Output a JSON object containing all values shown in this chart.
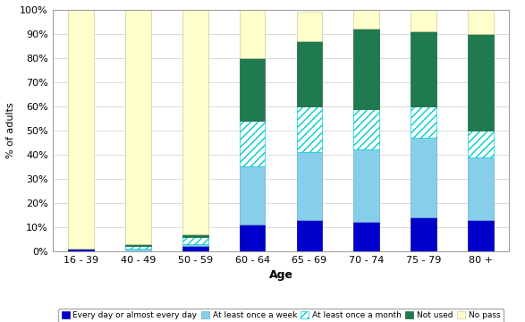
{
  "categories": [
    "16 - 39",
    "40 - 49",
    "50 - 59",
    "60 - 64",
    "65 - 69",
    "70 - 74",
    "75 - 79",
    "80 +"
  ],
  "series_order": [
    "Every day or almost every day",
    "At least once a week",
    "At least once a month",
    "Not used",
    "No pass"
  ],
  "series": {
    "Every day or almost every day": [
      1,
      0,
      2,
      11,
      13,
      12,
      14,
      13
    ],
    "At least once a week": [
      0,
      1,
      1,
      24,
      28,
      30,
      33,
      26
    ],
    "At least once a month": [
      0,
      1,
      3,
      19,
      19,
      17,
      13,
      11
    ],
    "Not used": [
      0,
      1,
      1,
      26,
      27,
      33,
      31,
      40
    ],
    "No pass": [
      99,
      97,
      93,
      20,
      12,
      8,
      9,
      10
    ]
  },
  "face_colors": {
    "Every day or almost every day": "#0000CC",
    "At least once a week": "#87CEEB",
    "At least once a month": "#FFFFFF",
    "Not used": "#1F7A4F",
    "No pass": "#FFFFCC"
  },
  "edge_colors": {
    "Every day or almost every day": "#000088",
    "At least once a week": "#6AABCC",
    "At least once a month": "#00CCCC",
    "Not used": "#1A6040",
    "No pass": "#CCCC99"
  },
  "hatch_patterns": {
    "Every day or almost every day": "",
    "At least once a week": "",
    "At least once a month": "////",
    "Not used": "",
    "No pass": ""
  },
  "ylabel": "% of adults",
  "xlabel": "Age",
  "ylim": [
    0,
    100
  ],
  "yticks": [
    0,
    10,
    20,
    30,
    40,
    50,
    60,
    70,
    80,
    90,
    100
  ],
  "ytick_labels": [
    "0%",
    "10%",
    "20%",
    "30%",
    "40%",
    "50%",
    "60%",
    "70%",
    "80%",
    "90%",
    "100%"
  ],
  "bar_width": 0.45,
  "figsize": [
    5.87,
    3.6
  ],
  "dpi": 100
}
